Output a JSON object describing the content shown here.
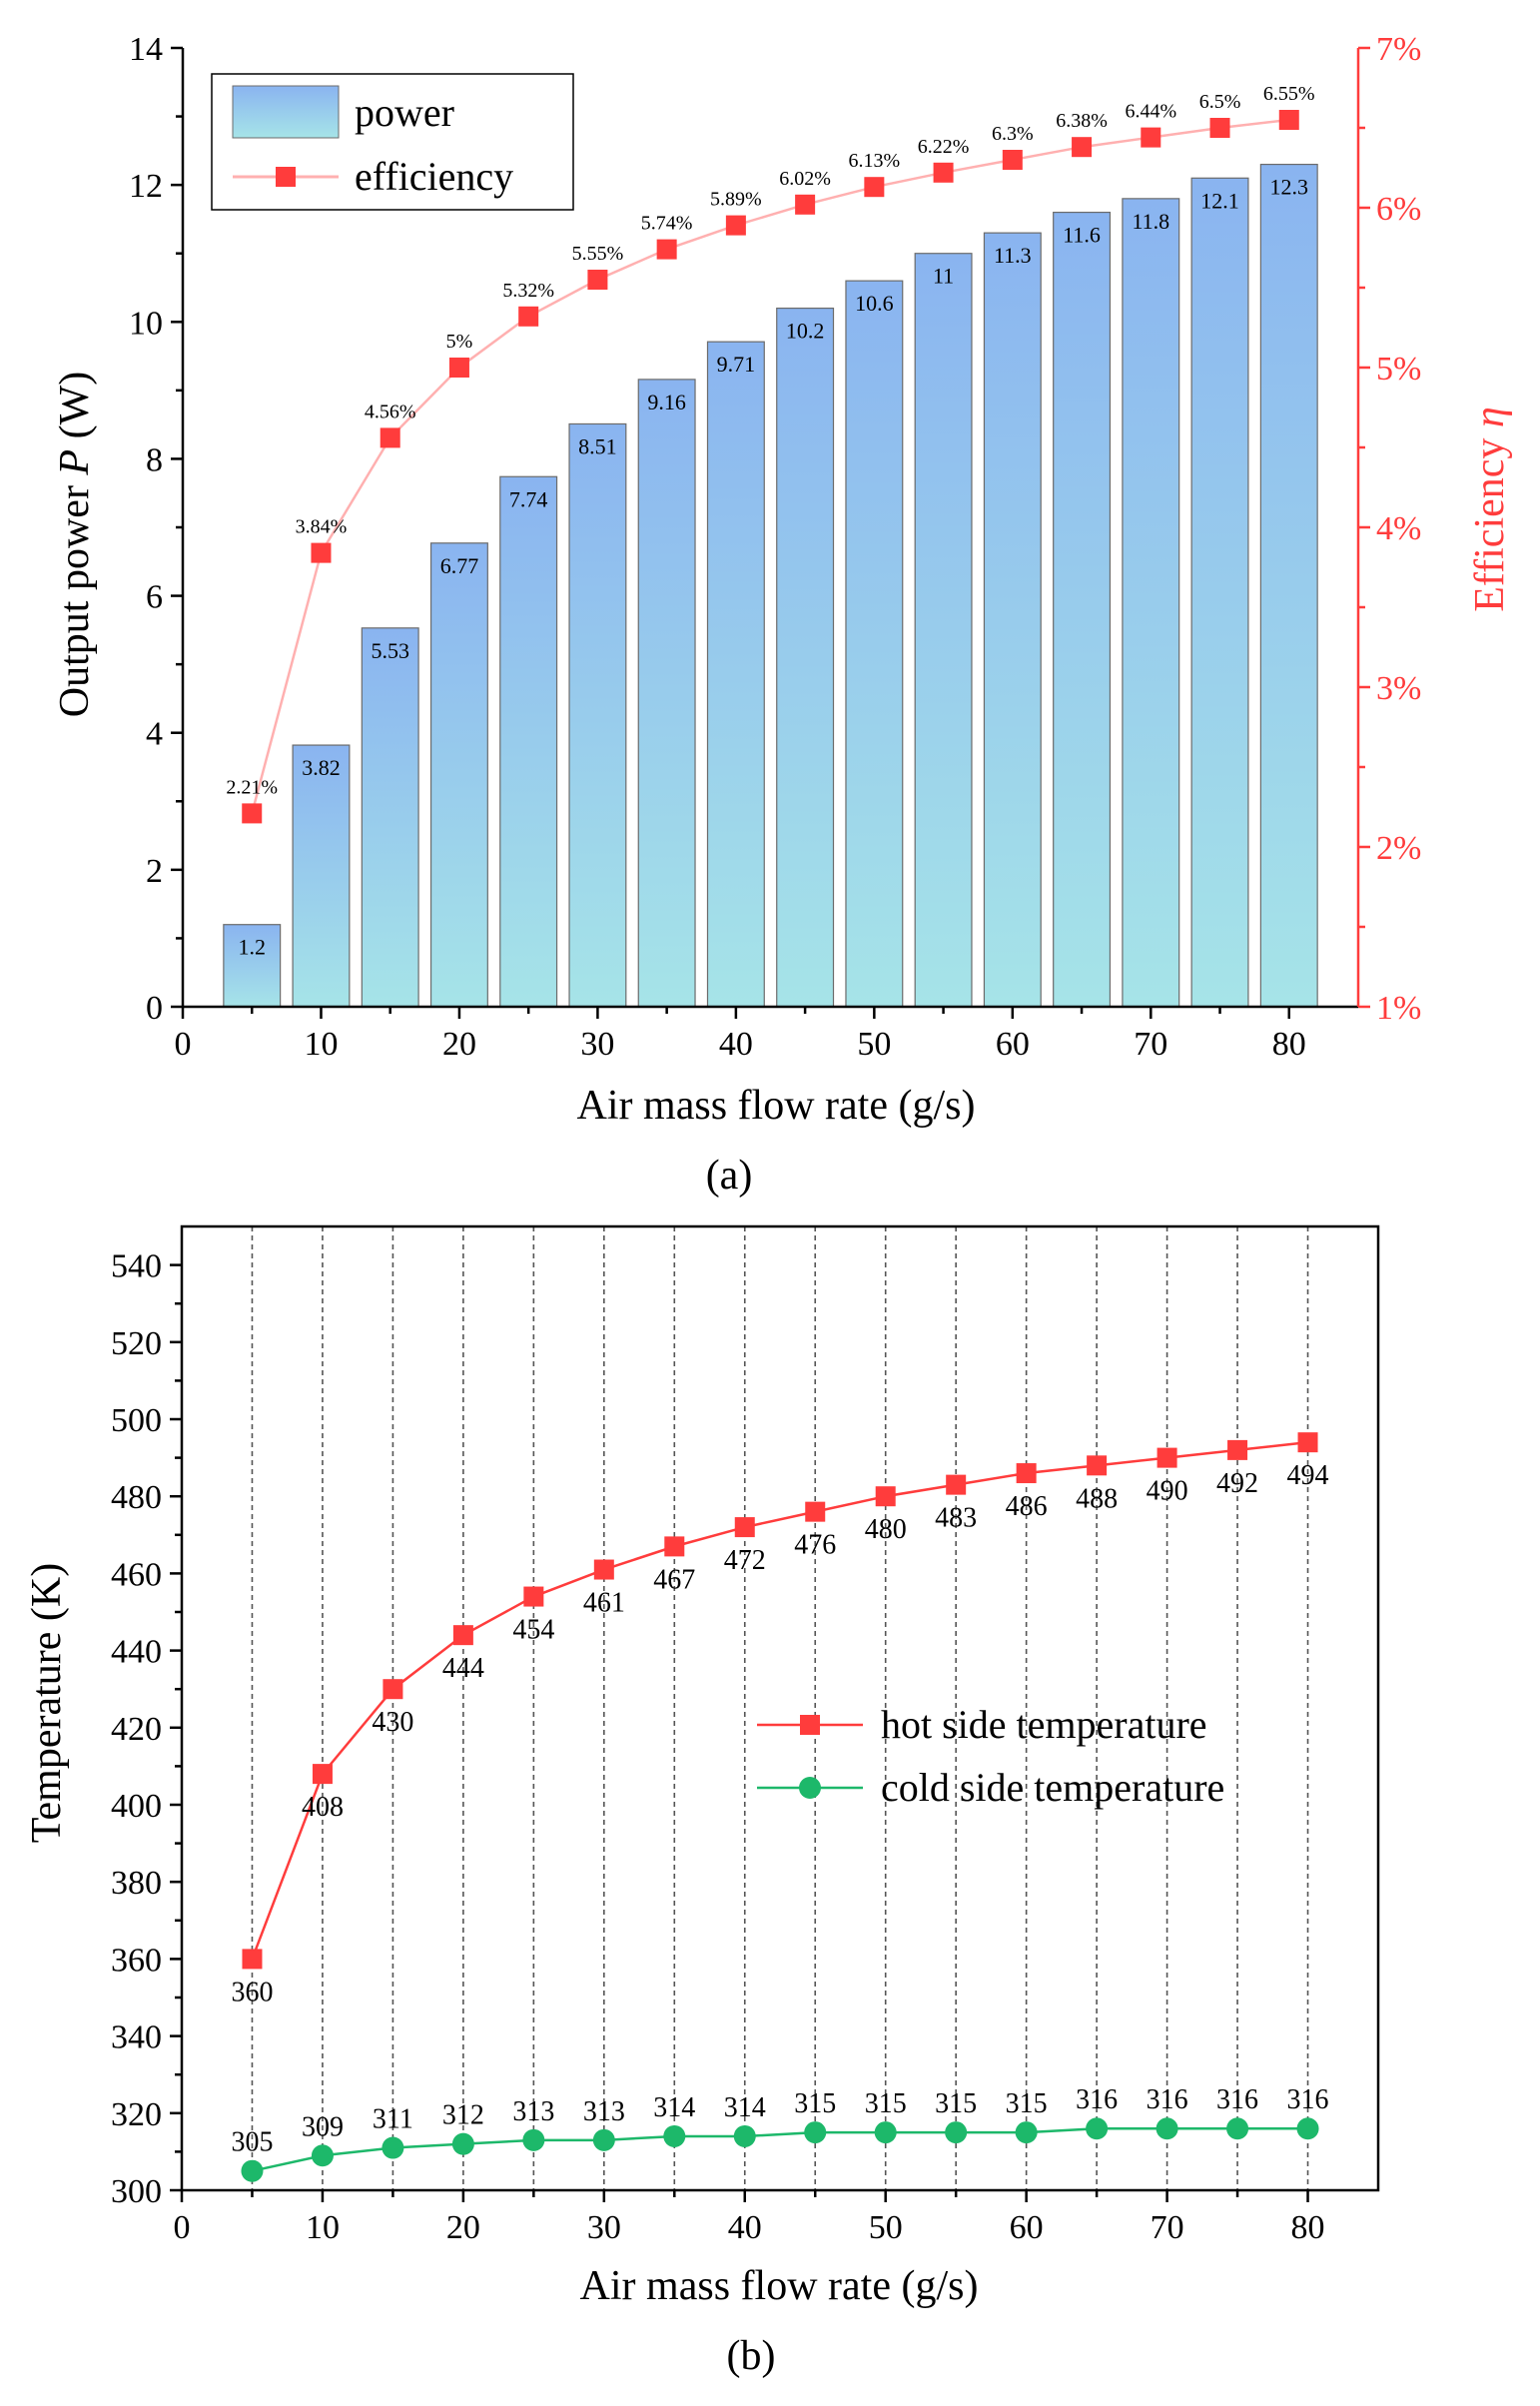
{
  "chart_data": [
    {
      "id": "a",
      "type": "bar",
      "panel_label": "(a)",
      "xlabel": "Air mass flow rate (g/s)",
      "ylabel": "Output power P (W)",
      "ylabel_prefix": "Output power ",
      "ylabel_italic": "P",
      "ylabel_suffix": " (W)",
      "y2label": "Efficiency η",
      "y2label_prefix": "Efficiency ",
      "y2label_italic": "η",
      "xlim": [
        0,
        85
      ],
      "ylim": [
        0,
        14
      ],
      "y2lim": [
        1,
        7
      ],
      "xticks": [
        0,
        10,
        20,
        30,
        40,
        50,
        60,
        70,
        80
      ],
      "yticks": [
        0,
        2,
        4,
        6,
        8,
        10,
        12,
        14
      ],
      "y2ticks": [
        1,
        2,
        3,
        4,
        5,
        6,
        7
      ],
      "y2tick_labels": [
        "1%",
        "2%",
        "3%",
        "4%",
        "5%",
        "6%",
        "7%"
      ],
      "x": [
        5,
        10,
        15,
        20,
        25,
        30,
        35,
        40,
        45,
        50,
        55,
        60,
        65,
        70,
        75,
        80
      ],
      "series": [
        {
          "name": "power",
          "type": "bar",
          "axis": "left",
          "values": [
            1.2,
            3.82,
            5.53,
            6.77,
            7.74,
            8.51,
            9.16,
            9.71,
            10.2,
            10.6,
            11,
            11.3,
            11.6,
            11.8,
            12.1,
            12.3
          ],
          "labels": [
            "1.2",
            "3.82",
            "5.53",
            "6.77",
            "7.74",
            "8.51",
            "9.16",
            "9.71",
            "10.2",
            "10.6",
            "11",
            "11.3",
            "11.6",
            "11.8",
            "12.1",
            "12.3"
          ],
          "color_top": "#8ab4f0",
          "color_bottom": "#a6e4e8"
        },
        {
          "name": "efficiency",
          "type": "line",
          "axis": "right",
          "marker": "square",
          "values": [
            2.21,
            3.84,
            4.56,
            5.0,
            5.32,
            5.55,
            5.74,
            5.89,
            6.02,
            6.13,
            6.22,
            6.3,
            6.38,
            6.44,
            6.5,
            6.55
          ],
          "labels": [
            "2.21%",
            "3.84%",
            "4.56%",
            "5%",
            "5.32%",
            "5.55%",
            "5.74%",
            "5.89%",
            "6.02%",
            "6.13%",
            "6.22%",
            "6.3%",
            "6.38%",
            "6.44%",
            "6.5%",
            "6.55%"
          ],
          "color": "#ff3c3c",
          "line_color": "#ffb0b0"
        }
      ],
      "legend": [
        "power",
        "efficiency"
      ],
      "legend_position": "top-left"
    },
    {
      "id": "b",
      "type": "line",
      "panel_label": "(b)",
      "xlabel": "Air mass flow rate (g/s)",
      "ylabel": "Temperature (K)",
      "xlim": [
        0,
        85
      ],
      "ylim": [
        300,
        550
      ],
      "xticks": [
        0,
        10,
        20,
        30,
        40,
        50,
        60,
        70,
        80
      ],
      "yticks": [
        300,
        320,
        340,
        360,
        380,
        400,
        420,
        440,
        460,
        480,
        500,
        520,
        540
      ],
      "x": [
        5,
        10,
        15,
        20,
        25,
        30,
        35,
        40,
        45,
        50,
        55,
        60,
        65,
        70,
        75,
        80
      ],
      "series": [
        {
          "name": "hot side temperature",
          "marker": "square",
          "values": [
            360,
            408,
            430,
            444,
            454,
            461,
            467,
            472,
            476,
            480,
            483,
            486,
            488,
            490,
            492,
            494
          ],
          "labels": [
            "360",
            "408",
            "430",
            "444",
            "454",
            "461",
            "467",
            "472",
            "476",
            "480",
            "483",
            "486",
            "488",
            "490",
            "492",
            "494"
          ],
          "color": "#ff3c3c"
        },
        {
          "name": "cold side temperature",
          "marker": "circle",
          "values": [
            305,
            309,
            311,
            312,
            313,
            313,
            314,
            314,
            315,
            315,
            315,
            315,
            316,
            316,
            316,
            316
          ],
          "labels": [
            "305",
            "309",
            "311",
            "312",
            "313",
            "313",
            "314",
            "314",
            "315",
            "315",
            "315",
            "315",
            "316",
            "316",
            "316",
            "316"
          ],
          "color": "#1db86a"
        }
      ],
      "legend": [
        "hot side temperature",
        "cold side temperature"
      ],
      "legend_position": "center-right",
      "guides": "vertical dashed lines at each data x"
    }
  ]
}
